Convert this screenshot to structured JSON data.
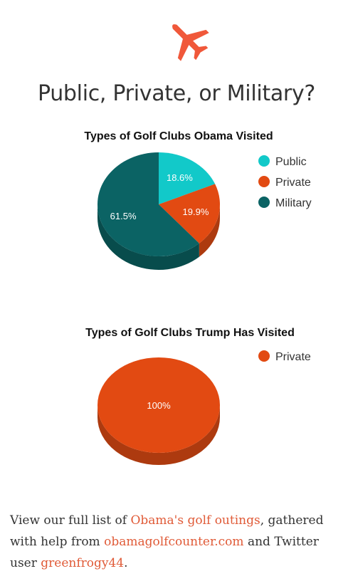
{
  "header": {
    "icon": "airplane-icon",
    "icon_color": "#f0583a",
    "title": "Public, Private, or Military?"
  },
  "chart_data": [
    {
      "type": "pie",
      "title": "Types of Golf Clubs Obama Visited",
      "categories": [
        "Public",
        "Private",
        "Military"
      ],
      "values": [
        18.6,
        19.9,
        61.5
      ],
      "labels": [
        "18.6%",
        "19.9%",
        "61.5%"
      ],
      "colors": [
        "#12c9c9",
        "#e24a12",
        "#0b6364"
      ],
      "side_colors": [
        "#0e9b9b",
        "#ad3a0f",
        "#084c4c"
      ],
      "legend_position": "right",
      "style": "3d"
    },
    {
      "type": "pie",
      "title": "Types of Golf Clubs Trump Has Visited",
      "categories": [
        "Private"
      ],
      "values": [
        100
      ],
      "labels": [
        "100%"
      ],
      "colors": [
        "#e24a12"
      ],
      "side_colors": [
        "#ad3a0f"
      ],
      "legend_position": "right",
      "style": "3d"
    }
  ],
  "footer": {
    "text_1": "View our full list of ",
    "link_1": "Obama's golf outings",
    "text_2": ", gathered with help from ",
    "link_2": "obamagolfcounter.com",
    "text_3": " and Twitter user ",
    "link_3": "greenfrogy44",
    "text_4": ".",
    "link_color": "#e05a37"
  }
}
